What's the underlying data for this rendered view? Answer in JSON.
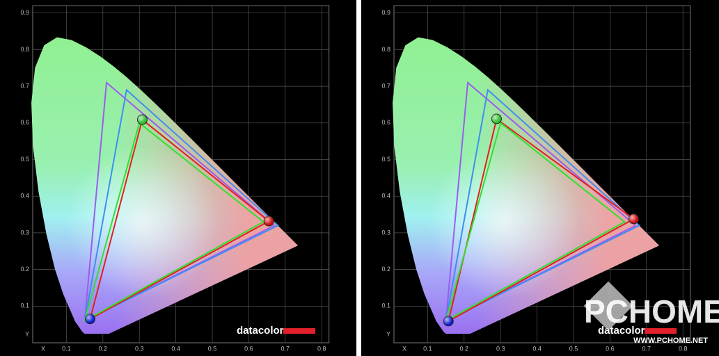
{
  "chart_data": [
    {
      "type": "gamut",
      "x_label": "X",
      "y_label": "Y",
      "xlim": [
        0,
        0.82
      ],
      "ylim": [
        0,
        0.92
      ],
      "xticks": [
        0.1,
        0.2,
        0.3,
        0.4,
        0.5,
        0.6,
        0.7,
        0.8
      ],
      "yticks": [
        0.1,
        0.2,
        0.3,
        0.4,
        0.5,
        0.6,
        0.7,
        0.8,
        0.9
      ],
      "series": [
        {
          "color": "#9a5cf0",
          "x": [
            0.21,
            0.67,
            0.15
          ],
          "y": [
            0.71,
            0.32,
            0.06
          ]
        },
        {
          "color": "#3d8ff0",
          "x": [
            0.265,
            0.68,
            0.15
          ],
          "y": [
            0.69,
            0.32,
            0.06
          ]
        },
        {
          "color": "#e02020",
          "x": [
            0.308,
            0.655,
            0.165
          ],
          "y": [
            0.609,
            0.332,
            0.065
          ],
          "marker": true
        },
        {
          "color": "#30e030",
          "x": [
            0.3,
            0.64,
            0.15
          ],
          "y": [
            0.6,
            0.33,
            0.06
          ]
        }
      ],
      "logo": "datacolor"
    },
    {
      "type": "gamut",
      "x_label": "X",
      "y_label": "Y",
      "xlim": [
        0,
        0.82
      ],
      "ylim": [
        0,
        0.92
      ],
      "xticks": [
        0.1,
        0.2,
        0.3,
        0.4,
        0.5,
        0.6,
        0.7,
        0.8
      ],
      "yticks": [
        0.1,
        0.2,
        0.3,
        0.4,
        0.5,
        0.6,
        0.7,
        0.8,
        0.9
      ],
      "series": [
        {
          "color": "#9a5cf0",
          "x": [
            0.21,
            0.67,
            0.15
          ],
          "y": [
            0.71,
            0.32,
            0.06
          ]
        },
        {
          "color": "#3d8ff0",
          "x": [
            0.265,
            0.68,
            0.15
          ],
          "y": [
            0.69,
            0.32,
            0.06
          ]
        },
        {
          "color": "#e02020",
          "x": [
            0.289,
            0.665,
            0.157
          ],
          "y": [
            0.611,
            0.338,
            0.059
          ],
          "marker": true
        },
        {
          "color": "#30e030",
          "x": [
            0.3,
            0.64,
            0.15
          ],
          "y": [
            0.6,
            0.33,
            0.06
          ]
        }
      ],
      "logo": "datacolor",
      "watermark": "PCHOME",
      "watermark_url": "WWW.PCHOME.NET"
    }
  ]
}
